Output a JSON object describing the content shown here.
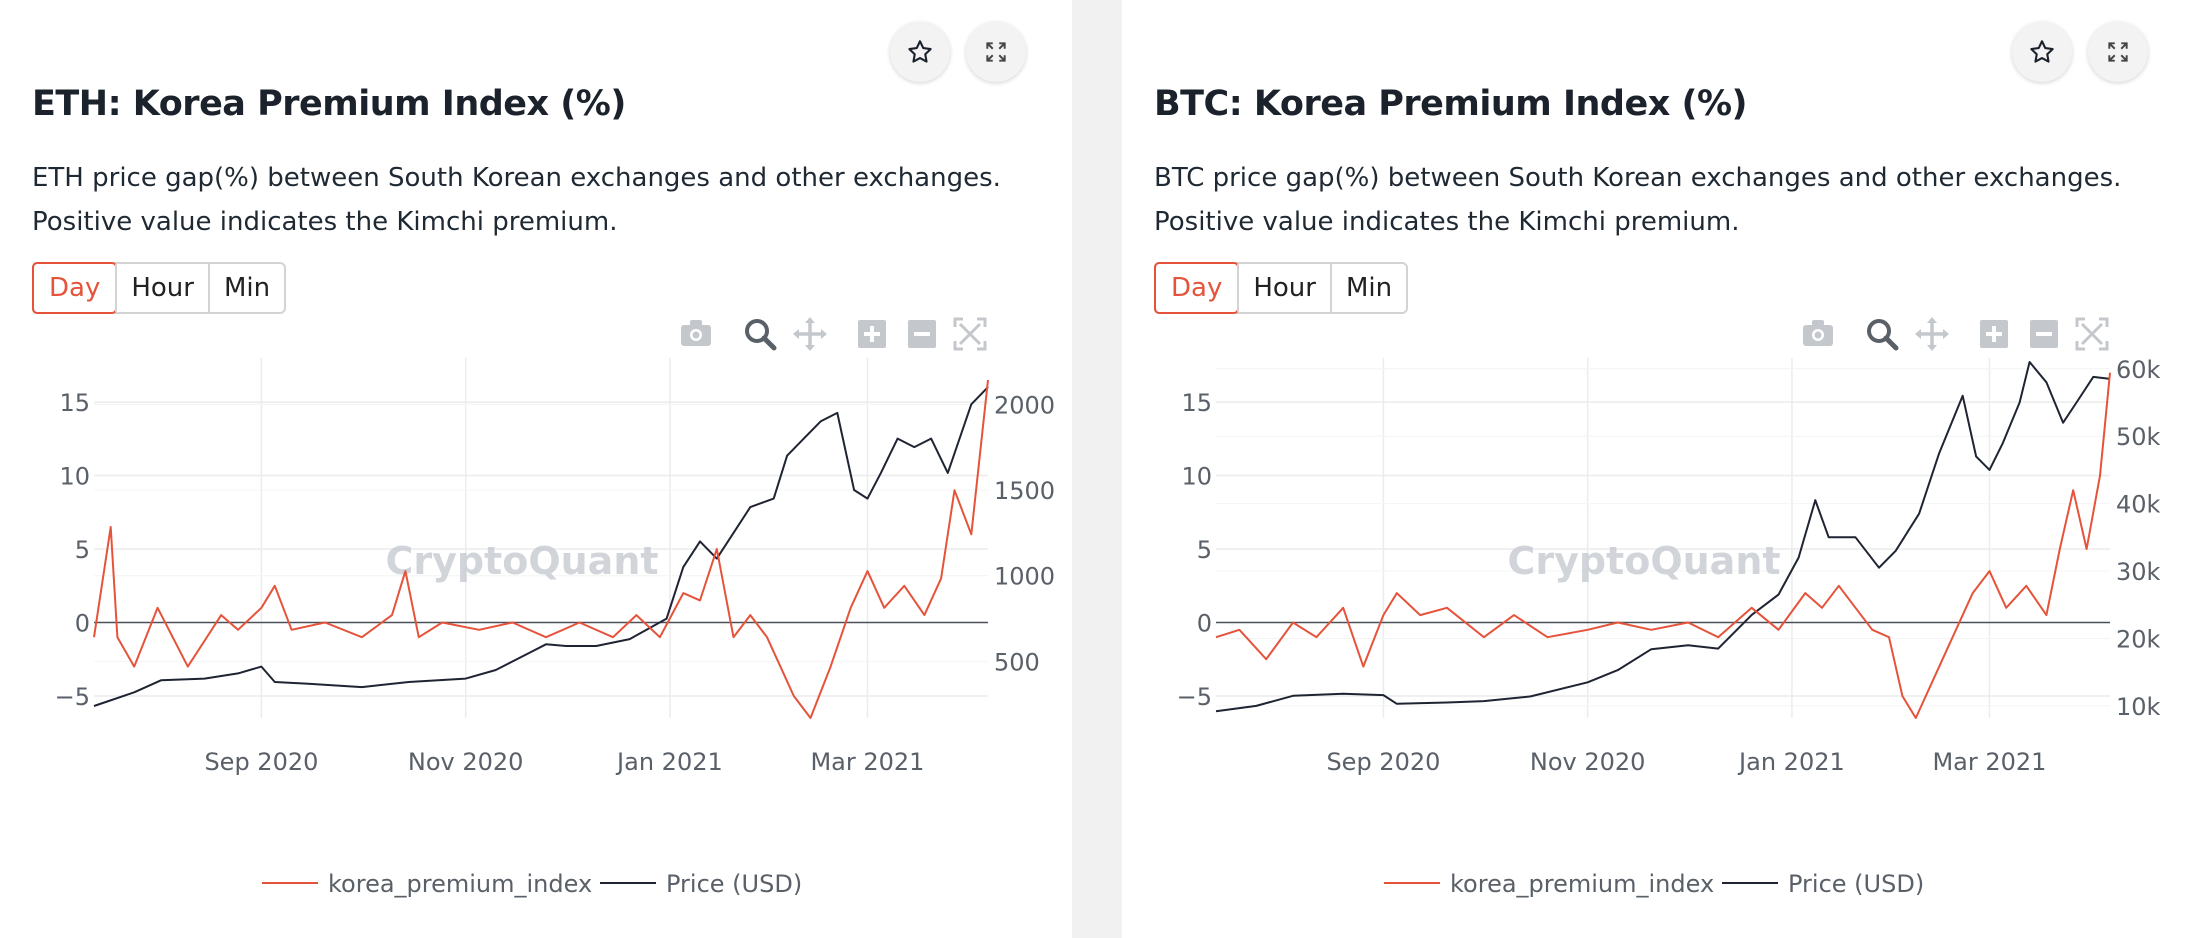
{
  "colors": {
    "accent": "#e5533a",
    "price_line": "#1f2433"
  },
  "icons": [
    "star-icon",
    "expand-icon",
    "camera-icon",
    "zoom-icon",
    "pan-icon",
    "zoom-in-icon",
    "zoom-out-icon",
    "autoscale-icon"
  ],
  "panels": [
    {
      "title": "ETH: Korea Premium Index (%)",
      "description_line1": "ETH price gap(%) between South Korean exchanges and other exchanges.",
      "description_line2": "Positive value indicates the Kimchi premium.",
      "tabs": [
        "Day",
        "Hour",
        "Min"
      ],
      "active_tab": "Day",
      "watermark": "CryptoQuant",
      "legend": [
        "korea_premium_index",
        "Price (USD)"
      ]
    },
    {
      "title": "BTC: Korea Premium Index (%)",
      "description_line1": "BTC price gap(%) between South Korean exchanges and other exchanges.",
      "description_line2": "Positive value indicates the Kimchi premium.",
      "tabs": [
        "Day",
        "Hour",
        "Min"
      ],
      "active_tab": "Day",
      "watermark": "CryptoQuant",
      "legend": [
        "korea_premium_index",
        "Price (USD)"
      ]
    }
  ],
  "chart_data": [
    {
      "type": "line",
      "title": "ETH: Korea Premium Index (%)",
      "x_range": [
        "2020-07-13",
        "2021-04-06"
      ],
      "x_ticks": [
        {
          "date": "2020-09-01",
          "label": "Sep 2020"
        },
        {
          "date": "2020-11-01",
          "label": "Nov 2020"
        },
        {
          "date": "2021-01-01",
          "label": "Jan 2021"
        },
        {
          "date": "2021-03-01",
          "label": "Mar 2021"
        }
      ],
      "y_left": {
        "range": [
          -6.5,
          18
        ],
        "ticks": [
          -5,
          0,
          5,
          10,
          15
        ],
        "tick_labels": [
          "−5",
          "0",
          "5",
          "10",
          "15"
        ]
      },
      "y_right": {
        "range": [
          170,
          2270
        ],
        "ticks": [
          500,
          1000,
          1500,
          2000
        ],
        "tick_labels": [
          "500",
          "1000",
          "1500",
          "2000"
        ]
      },
      "grid": true,
      "legend_position": "bottom",
      "series": [
        {
          "name": "korea_premium_index",
          "axis": "left",
          "color": "#e5533a",
          "x": [
            "2020-07-13",
            "2020-07-18",
            "2020-07-20",
            "2020-07-25",
            "2020-08-01",
            "2020-08-10",
            "2020-08-20",
            "2020-08-25",
            "2020-09-01",
            "2020-09-05",
            "2020-09-10",
            "2020-09-20",
            "2020-10-01",
            "2020-10-10",
            "2020-10-14",
            "2020-10-18",
            "2020-10-25",
            "2020-11-05",
            "2020-11-15",
            "2020-11-25",
            "2020-12-05",
            "2020-12-15",
            "2020-12-22",
            "2020-12-29",
            "2021-01-05",
            "2021-01-10",
            "2021-01-15",
            "2021-01-20",
            "2021-01-25",
            "2021-01-30",
            "2021-02-03",
            "2021-02-07",
            "2021-02-12",
            "2021-02-18",
            "2021-02-24",
            "2021-03-01",
            "2021-03-06",
            "2021-03-12",
            "2021-03-18",
            "2021-03-23",
            "2021-03-27",
            "2021-04-01",
            "2021-04-06"
          ],
          "y": [
            -1,
            6.5,
            -1,
            -3,
            1,
            -3,
            0.5,
            -0.5,
            1,
            2.5,
            -0.5,
            0,
            -1,
            0.5,
            3.5,
            -1,
            0,
            -0.5,
            0,
            -1,
            0,
            -1,
            0.5,
            -1,
            2,
            1.5,
            5,
            -1,
            0.5,
            -1,
            -3,
            -5,
            -6.5,
            -3,
            1,
            3.5,
            1,
            2.5,
            0.5,
            3,
            9,
            6,
            16.5
          ]
        },
        {
          "name": "Price (USD)",
          "axis": "right",
          "color": "#1f2433",
          "x": [
            "2020-07-13",
            "2020-07-25",
            "2020-08-02",
            "2020-08-15",
            "2020-08-25",
            "2020-09-01",
            "2020-09-05",
            "2020-09-15",
            "2020-10-01",
            "2020-10-15",
            "2020-11-01",
            "2020-11-10",
            "2020-11-20",
            "2020-11-25",
            "2020-12-01",
            "2020-12-10",
            "2020-12-20",
            "2020-12-31",
            "2021-01-05",
            "2021-01-10",
            "2021-01-15",
            "2021-01-20",
            "2021-01-25",
            "2021-02-01",
            "2021-02-05",
            "2021-02-10",
            "2021-02-15",
            "2021-02-20",
            "2021-02-25",
            "2021-03-01",
            "2021-03-05",
            "2021-03-10",
            "2021-03-15",
            "2021-03-20",
            "2021-03-25",
            "2021-04-01",
            "2021-04-06"
          ],
          "y": [
            240,
            320,
            390,
            400,
            430,
            470,
            380,
            370,
            350,
            380,
            400,
            450,
            550,
            600,
            590,
            590,
            630,
            750,
            1050,
            1200,
            1100,
            1250,
            1400,
            1450,
            1700,
            1800,
            1900,
            1950,
            1500,
            1450,
            1600,
            1800,
            1750,
            1800,
            1600,
            2000,
            2100
          ]
        }
      ]
    },
    {
      "type": "line",
      "title": "BTC: Korea Premium Index (%)",
      "x_range": [
        "2020-07-13",
        "2021-04-06"
      ],
      "x_ticks": [
        {
          "date": "2020-09-01",
          "label": "Sep 2020"
        },
        {
          "date": "2020-11-01",
          "label": "Nov 2020"
        },
        {
          "date": "2021-01-01",
          "label": "Jan 2021"
        },
        {
          "date": "2021-03-01",
          "label": "Mar 2021"
        }
      ],
      "y_left": {
        "range": [
          -6.5,
          18
        ],
        "ticks": [
          -5,
          0,
          5,
          10,
          15
        ],
        "tick_labels": [
          "−5",
          "0",
          "5",
          "10",
          "15"
        ]
      },
      "y_right": {
        "range": [
          8200,
          61600
        ],
        "ticks": [
          10000,
          20000,
          30000,
          40000,
          50000,
          60000
        ],
        "tick_labels": [
          "10k",
          "20k",
          "30k",
          "40k",
          "50k",
          "60k"
        ]
      },
      "grid": true,
      "legend_position": "bottom",
      "series": [
        {
          "name": "korea_premium_index",
          "axis": "left",
          "color": "#e5533a",
          "x": [
            "2020-07-13",
            "2020-07-20",
            "2020-07-28",
            "2020-08-05",
            "2020-08-12",
            "2020-08-20",
            "2020-08-26",
            "2020-09-01",
            "2020-09-05",
            "2020-09-12",
            "2020-09-20",
            "2020-10-01",
            "2020-10-10",
            "2020-10-20",
            "2020-11-01",
            "2020-11-10",
            "2020-11-20",
            "2020-12-01",
            "2020-12-10",
            "2020-12-20",
            "2020-12-28",
            "2021-01-05",
            "2021-01-10",
            "2021-01-15",
            "2021-01-20",
            "2021-01-25",
            "2021-01-30",
            "2021-02-03",
            "2021-02-07",
            "2021-02-12",
            "2021-02-18",
            "2021-02-24",
            "2021-03-01",
            "2021-03-06",
            "2021-03-12",
            "2021-03-18",
            "2021-03-22",
            "2021-03-26",
            "2021-03-30",
            "2021-04-03",
            "2021-04-06"
          ],
          "y": [
            -1,
            -0.5,
            -2.5,
            0,
            -1,
            1,
            -3,
            0.5,
            2,
            0.5,
            1,
            -1,
            0.5,
            -1,
            -0.5,
            0,
            -0.5,
            0,
            -1,
            1,
            -0.5,
            2,
            1,
            2.5,
            1,
            -0.5,
            -1,
            -5,
            -6.5,
            -4,
            -1,
            2,
            3.5,
            1,
            2.5,
            0.5,
            5,
            9,
            5,
            10,
            17
          ]
        },
        {
          "name": "Price (USD)",
          "axis": "right",
          "color": "#1f2433",
          "x": [
            "2020-07-13",
            "2020-07-25",
            "2020-08-05",
            "2020-08-20",
            "2020-09-01",
            "2020-09-05",
            "2020-09-20",
            "2020-10-01",
            "2020-10-15",
            "2020-11-01",
            "2020-11-10",
            "2020-11-20",
            "2020-12-01",
            "2020-12-10",
            "2020-12-20",
            "2020-12-28",
            "2021-01-03",
            "2021-01-08",
            "2021-01-12",
            "2021-01-20",
            "2021-01-27",
            "2021-02-01",
            "2021-02-08",
            "2021-02-14",
            "2021-02-21",
            "2021-02-25",
            "2021-03-01",
            "2021-03-05",
            "2021-03-10",
            "2021-03-13",
            "2021-03-18",
            "2021-03-23",
            "2021-03-27",
            "2021-04-01",
            "2021-04-06"
          ],
          "y": [
            9200,
            10000,
            11500,
            11800,
            11600,
            10300,
            10500,
            10700,
            11400,
            13500,
            15300,
            18400,
            19000,
            18500,
            23500,
            26500,
            32000,
            40500,
            35000,
            35000,
            30500,
            33000,
            38500,
            47500,
            56000,
            47000,
            45000,
            49000,
            55000,
            61000,
            58000,
            52000,
            55000,
            58800,
            58500
          ]
        }
      ]
    }
  ]
}
